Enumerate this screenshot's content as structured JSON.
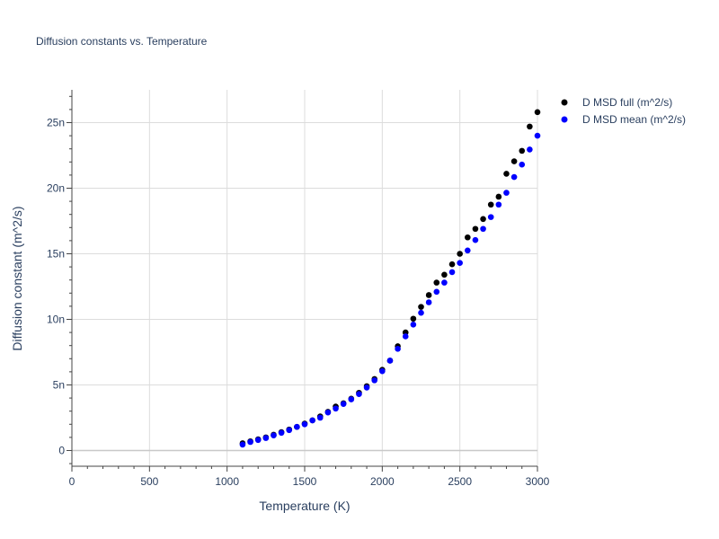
{
  "chart_data": {
    "type": "scatter",
    "title": "Diffusion constants vs. Temperature",
    "xlabel": "Temperature (K)",
    "ylabel": "Diffusion constant (m^2/s)",
    "xlim": [
      0,
      3000
    ],
    "ylim": [
      -1.2,
      27.5
    ],
    "x_ticks": [
      0,
      500,
      1000,
      1500,
      2000,
      2500,
      3000
    ],
    "y_ticks": [
      0,
      5,
      10,
      15,
      20,
      25
    ],
    "x_tick_labels": [
      "0",
      "500",
      "1000",
      "1500",
      "2000",
      "2500",
      "3000"
    ],
    "y_tick_labels": [
      "0",
      "5n",
      "10n",
      "15n",
      "20n",
      "25n"
    ],
    "y_unit_scale": "n",
    "grid": true,
    "legend_position": "top-right",
    "series": [
      {
        "name": "D MSD full (m^2/s)",
        "color": "#000000",
        "x": [
          1100,
          1150,
          1200,
          1250,
          1300,
          1350,
          1400,
          1450,
          1500,
          1550,
          1600,
          1650,
          1700,
          1750,
          1800,
          1850,
          1900,
          1950,
          2000,
          2050,
          2100,
          2150,
          2200,
          2250,
          2300,
          2350,
          2400,
          2450,
          2500,
          2550,
          2600,
          2650,
          2700,
          2750,
          2800,
          2850,
          2900,
          2950,
          3000
        ],
        "y": [
          0.55,
          0.7,
          0.85,
          1.0,
          1.2,
          1.4,
          1.6,
          1.8,
          2.05,
          2.3,
          2.6,
          2.95,
          3.35,
          3.6,
          3.95,
          4.4,
          4.9,
          5.45,
          6.15,
          6.85,
          7.95,
          9.0,
          10.05,
          10.95,
          11.85,
          12.8,
          13.4,
          14.2,
          15.0,
          16.25,
          16.9,
          17.65,
          18.75,
          19.35,
          21.1,
          22.05,
          22.85,
          24.7,
          25.8
        ]
      },
      {
        "name": "D MSD mean (m^2/s)",
        "color": "#0000ff",
        "x": [
          1100,
          1150,
          1200,
          1250,
          1300,
          1350,
          1400,
          1450,
          1500,
          1550,
          1600,
          1650,
          1700,
          1750,
          1800,
          1850,
          1900,
          1950,
          2000,
          2050,
          2100,
          2150,
          2200,
          2250,
          2300,
          2350,
          2400,
          2450,
          2500,
          2550,
          2600,
          2650,
          2700,
          2750,
          2800,
          2850,
          2900,
          2950,
          3000
        ],
        "y": [
          0.45,
          0.65,
          0.8,
          0.95,
          1.15,
          1.35,
          1.55,
          1.8,
          2.0,
          2.3,
          2.5,
          2.9,
          3.2,
          3.55,
          3.9,
          4.3,
          4.8,
          5.35,
          6.05,
          6.85,
          7.75,
          8.7,
          9.6,
          10.5,
          11.3,
          12.1,
          12.8,
          13.6,
          14.3,
          15.25,
          16.05,
          16.9,
          17.8,
          18.75,
          19.65,
          20.85,
          21.8,
          22.95,
          24.0
        ]
      }
    ]
  }
}
